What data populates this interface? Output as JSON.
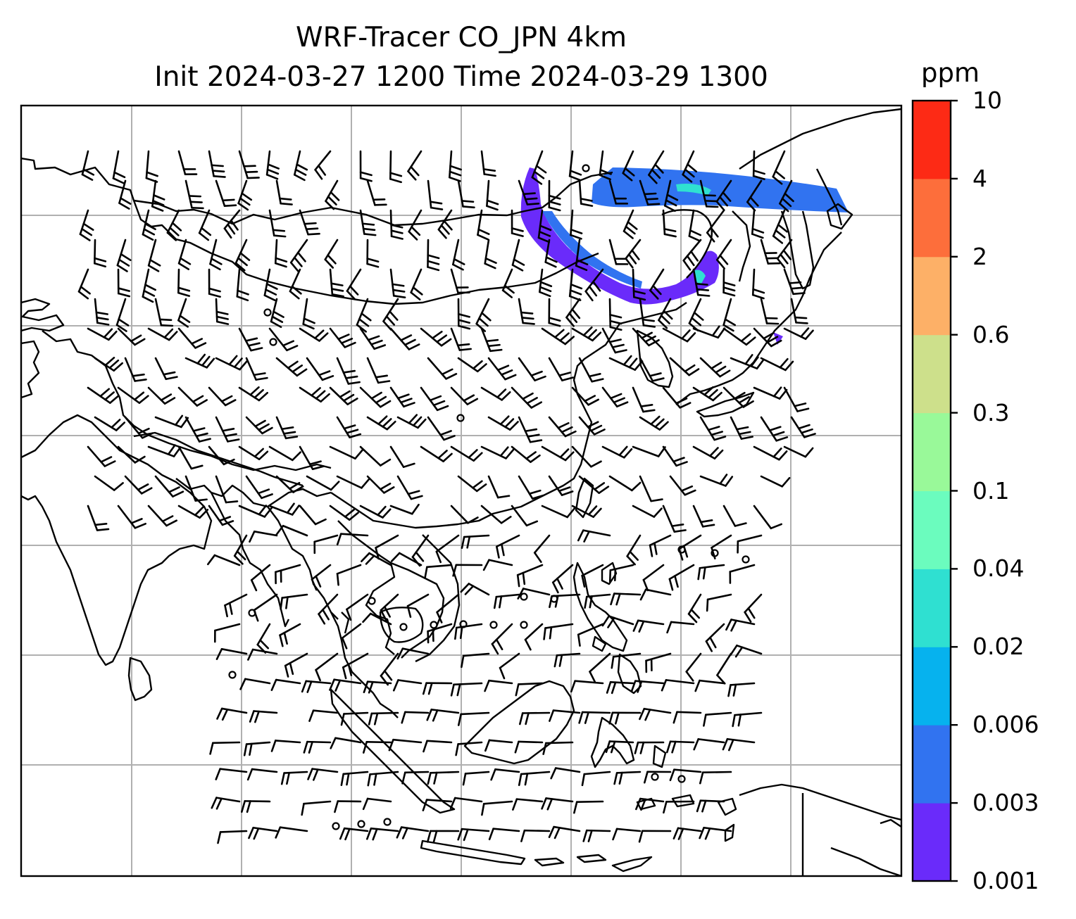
{
  "title": {
    "line1": "WRF-Tracer CO_JPN 4km",
    "line2": "Init 2024-03-27 1200 Time 2024-03-29 1300"
  },
  "colorbar": {
    "unit": "ppm",
    "ticks": [
      "10",
      "4",
      "2",
      "0.6",
      "0.3",
      "0.1",
      "0.04",
      "0.02",
      "0.006",
      "0.003",
      "0.001"
    ],
    "colors": [
      "#6a2bfa",
      "#3173f0",
      "#06b2ee",
      "#2fe0d1",
      "#6bfcbe",
      "#99f999",
      "#cde08b",
      "#fdb067",
      "#fd6e3b",
      "#fd2a15"
    ]
  },
  "map": {
    "plume_colors": {
      "low": "#6a2bfa",
      "mid": "#3173f0",
      "high": "#2fe0d1"
    },
    "gridlines": "on",
    "coastline_color": "#000000",
    "barb_color": "#000000"
  }
}
